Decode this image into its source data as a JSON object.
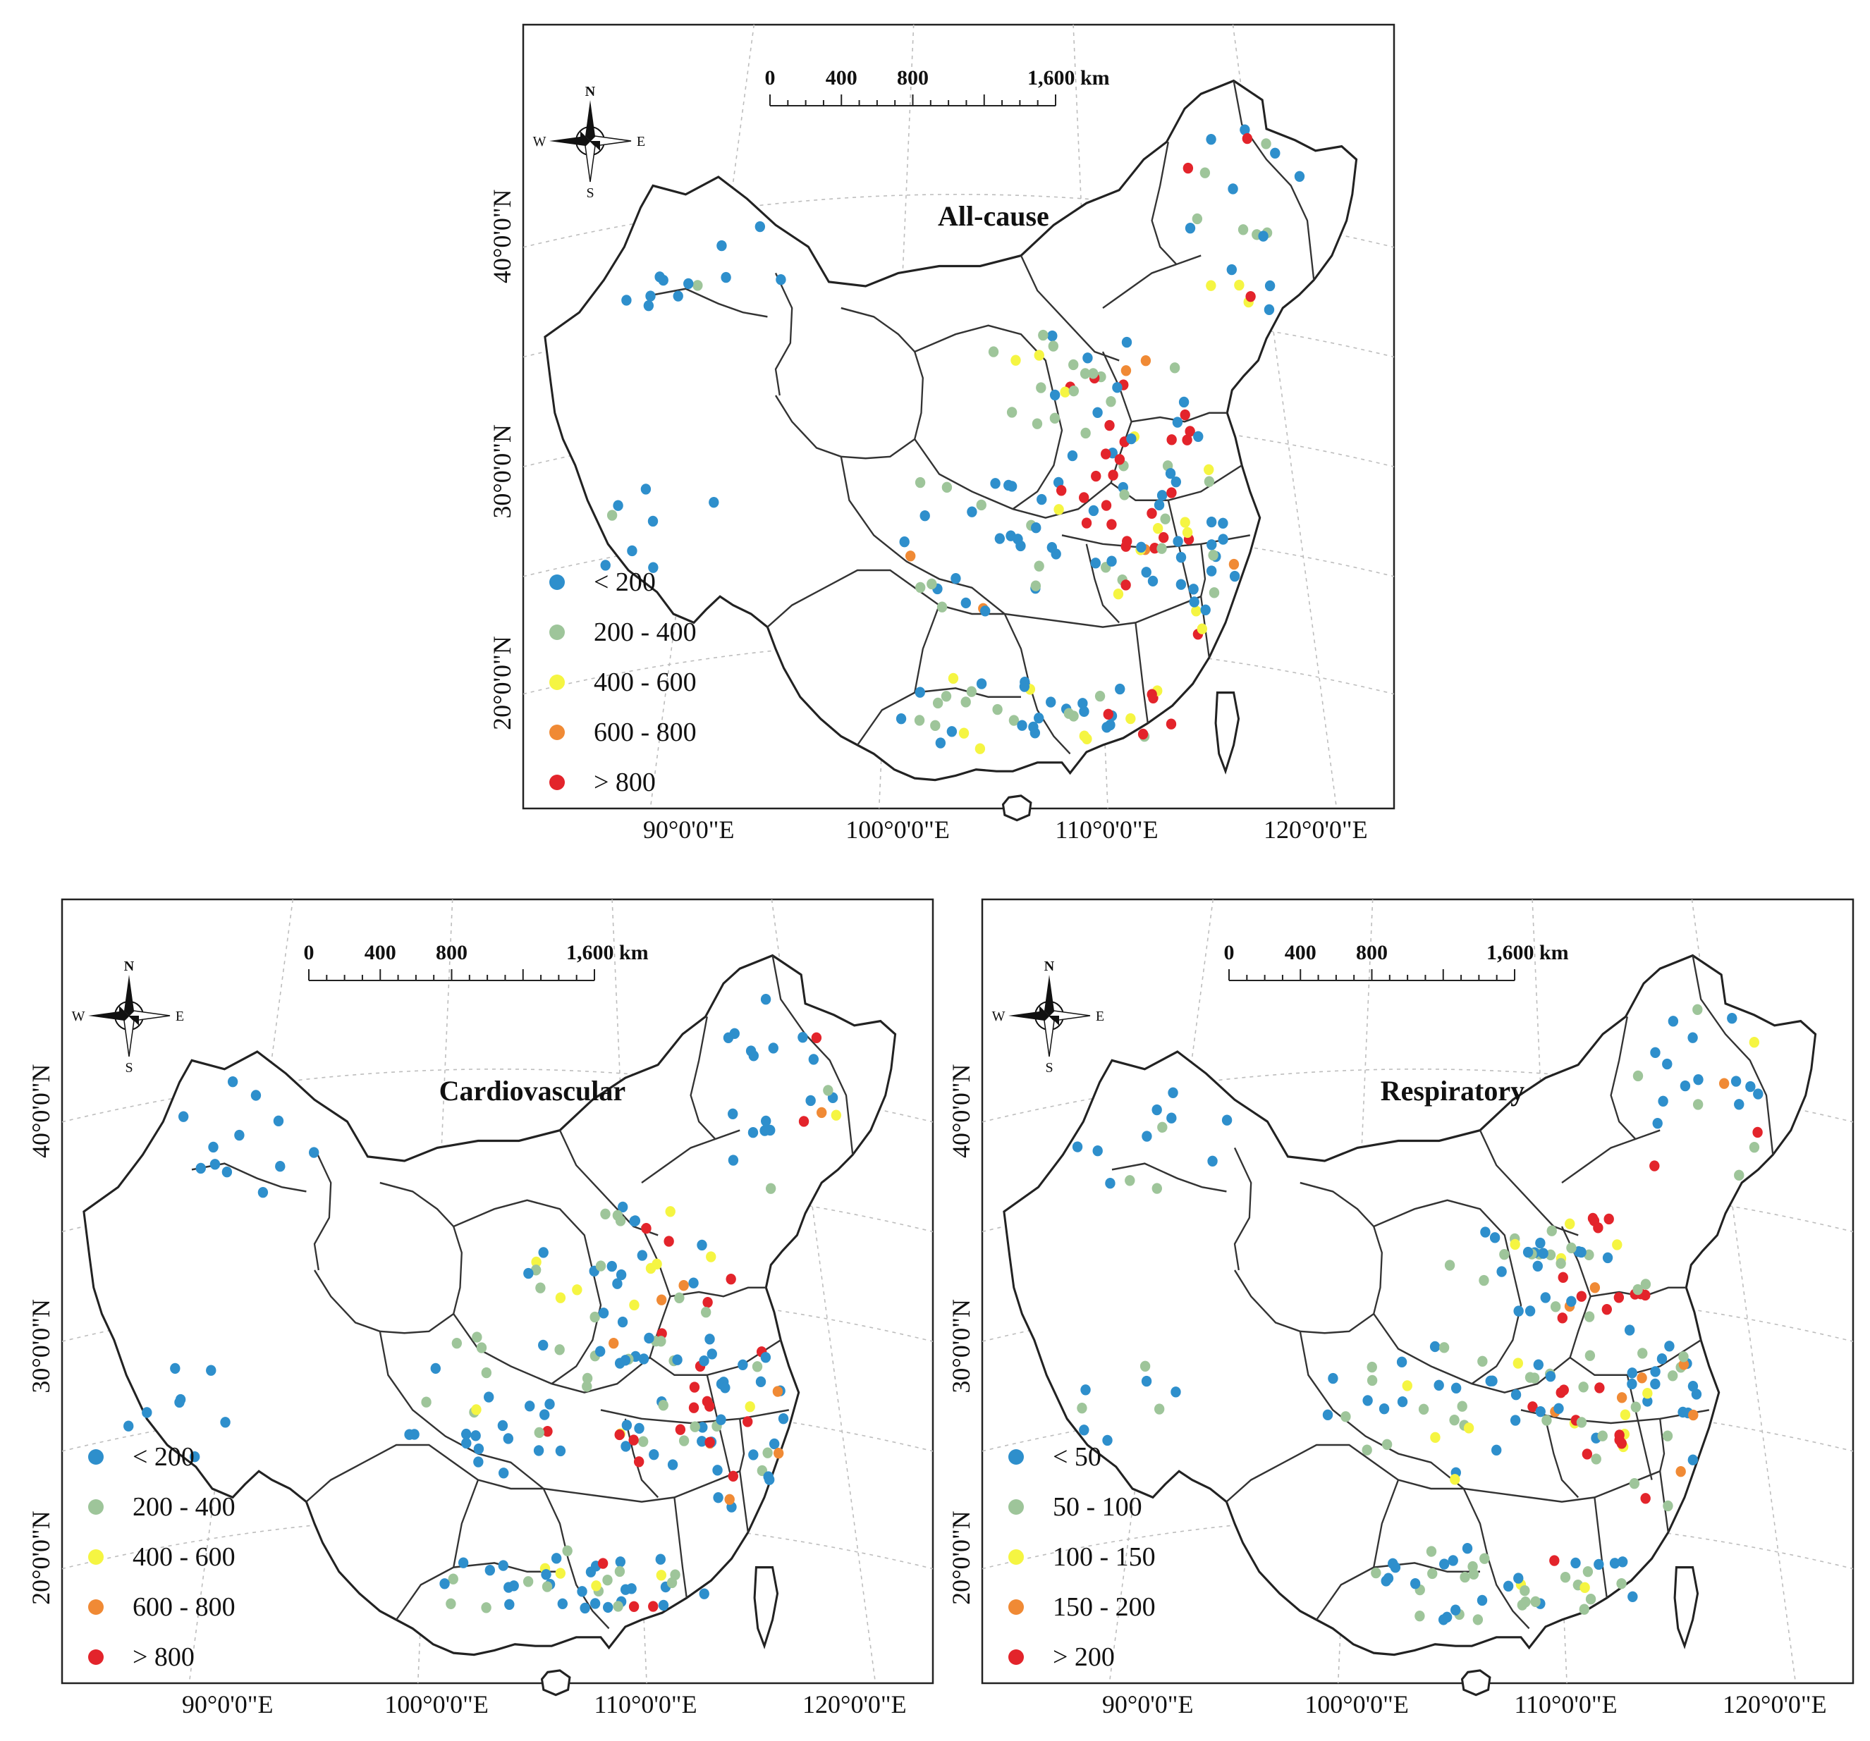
{
  "panels": [
    {
      "id": "all-cause",
      "title": "All-cause",
      "legend": [
        {
          "label": "< 200",
          "color": "#2e8fcc"
        },
        {
          "label": "200 - 400",
          "color": "#9ec59a"
        },
        {
          "label": "400 - 600",
          "color": "#f5f542"
        },
        {
          "label": "600 - 800",
          "color": "#f08a35"
        },
        {
          "label": "> 800",
          "color": "#e3242b"
        }
      ],
      "mix": [
        0.3,
        0.24,
        0.13,
        0.08,
        0.25
      ]
    },
    {
      "id": "cardiovascular",
      "title": "Cardiovascular",
      "legend": [
        {
          "label": "< 200",
          "color": "#2e8fcc"
        },
        {
          "label": "200 - 400",
          "color": "#9ec59a"
        },
        {
          "label": "400 - 600",
          "color": "#f5f542"
        },
        {
          "label": "600 - 800",
          "color": "#f08a35"
        },
        {
          "label": "> 800",
          "color": "#e3242b"
        }
      ],
      "mix": [
        0.4,
        0.27,
        0.12,
        0.07,
        0.14
      ]
    },
    {
      "id": "respiratory",
      "title": "Respiratory",
      "legend": [
        {
          "label": "< 50",
          "color": "#2e8fcc"
        },
        {
          "label": "50 - 100",
          "color": "#9ec59a"
        },
        {
          "label": "100 - 150",
          "color": "#f5f542"
        },
        {
          "label": "150 - 200",
          "color": "#f08a35"
        },
        {
          "label": "> 200",
          "color": "#e3242b"
        }
      ],
      "mix": [
        0.35,
        0.24,
        0.13,
        0.1,
        0.18
      ]
    }
  ],
  "scale_bar": {
    "labels": [
      "0",
      "400",
      "800",
      "1,600 km"
    ]
  },
  "compass": {
    "n": "N",
    "s": "S",
    "e": "E",
    "w": "W"
  },
  "x_axis_labels": [
    "90°0'0\"E",
    "100°0'0\"E",
    "110°0'0\"E",
    "120°0'0\"E"
  ],
  "y_axis_labels": [
    "40°0'0\"N",
    "30°0'0\"N",
    "20°0'0\"N"
  ]
}
